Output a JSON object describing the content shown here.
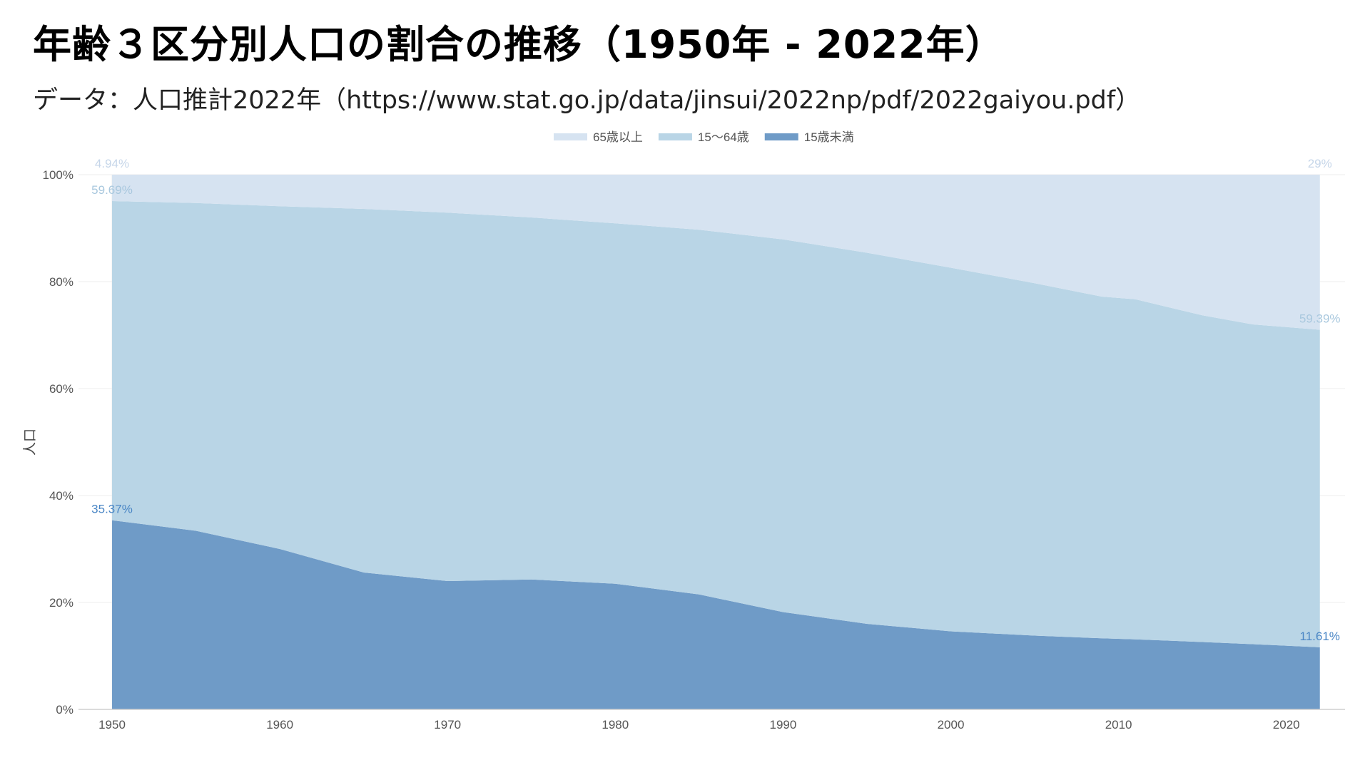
{
  "title": "年齢３区分別人口の割合の推移（1950年 - 2022年）",
  "subtitle": "データ：人口推計2022年（https://www.stat.go.jp/data/jinsui/2022np/pdf/2022gaiyou.pdf）",
  "chart_data": {
    "type": "area",
    "stacked": true,
    "ylabel": "人口",
    "xlabel": "",
    "xlim": [
      1948,
      2023.5
    ],
    "ylim": [
      0,
      100
    ],
    "x_ticks": [
      1950,
      1960,
      1970,
      1980,
      1990,
      2000,
      2010,
      2020
    ],
    "y_ticks": [
      0,
      20,
      40,
      60,
      80,
      100
    ],
    "y_tick_labels": [
      "0%",
      "20%",
      "40%",
      "60%",
      "80%",
      "100%"
    ],
    "grid": true,
    "legend_position": "top-center",
    "x": [
      1950,
      1955,
      1960,
      1965,
      1970,
      1975,
      1980,
      1985,
      1990,
      1995,
      2000,
      2005,
      2009,
      2011,
      2015,
      2018,
      2022
    ],
    "series": [
      {
        "name": "15歳未満",
        "color": "#6f9bc7",
        "values": [
          35.37,
          33.4,
          30.0,
          25.6,
          24.0,
          24.3,
          23.5,
          21.5,
          18.2,
          16.0,
          14.6,
          13.8,
          13.3,
          13.1,
          12.6,
          12.2,
          11.61
        ],
        "labels": [
          {
            "index": 0,
            "text": "35.37%"
          },
          {
            "index": 16,
            "text": "11.61%"
          }
        ],
        "label_color": "#4a86c5"
      },
      {
        "name": "15〜64歳",
        "color": "#b9d5e6",
        "values": [
          59.69,
          61.3,
          64.1,
          68.0,
          68.9,
          67.7,
          67.4,
          68.2,
          69.7,
          69.4,
          68.0,
          65.9,
          63.9,
          63.6,
          61.1,
          59.8,
          59.39
        ],
        "labels": [
          {
            "index": 0,
            "text": "59.69%"
          },
          {
            "index": 16,
            "text": "59.39%"
          }
        ],
        "label_color": "#a9c8de"
      },
      {
        "name": "65歳以上",
        "color": "#d6e3f1",
        "values": [
          4.94,
          5.3,
          5.9,
          6.4,
          7.1,
          8.0,
          9.1,
          10.3,
          12.1,
          14.6,
          17.4,
          20.3,
          22.8,
          23.3,
          26.3,
          28.0,
          29.0
        ],
        "labels": [
          {
            "index": 0,
            "text": "4.94%"
          },
          {
            "index": 16,
            "text": "29%"
          }
        ],
        "label_color": "#c6d6e9"
      }
    ],
    "legend_order": [
      "65歳以上",
      "15〜64歳",
      "15歳未満"
    ]
  }
}
